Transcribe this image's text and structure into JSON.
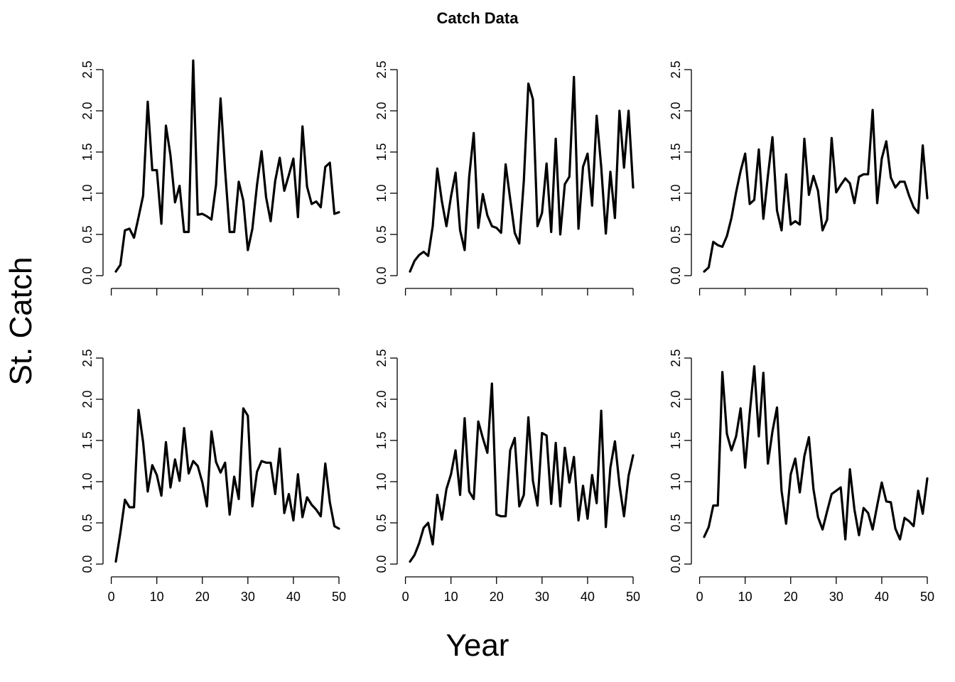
{
  "figure": {
    "title": "Catch Data",
    "xlabel": "Year",
    "ylabel": "St. Catch"
  },
  "chart_data": [
    {
      "type": "line",
      "panel": "row1-col1",
      "x_range": [
        1,
        50
      ],
      "ylim": [
        0,
        2.6
      ],
      "y_ticks": [
        "0.0",
        "0.5",
        "1.0",
        "1.5",
        "2.0",
        "2.5"
      ],
      "x_ticks": [
        "0",
        "10",
        "20",
        "30",
        "40",
        "50"
      ],
      "show_x_tick_labels": false,
      "grid": false,
      "values": [
        0.05,
        0.13,
        0.55,
        0.57,
        0.46,
        0.71,
        0.97,
        2.11,
        1.28,
        1.28,
        0.63,
        1.82,
        1.46,
        0.89,
        1.09,
        0.53,
        0.53,
        2.61,
        0.74,
        0.75,
        0.72,
        0.68,
        1.1,
        2.15,
        1.28,
        0.53,
        0.53,
        1.14,
        0.91,
        0.31,
        0.57,
        1.1,
        1.51,
        0.95,
        0.66,
        1.15,
        1.43,
        1.03,
        1.22,
        1.42,
        0.71,
        1.81,
        1.08,
        0.87,
        0.9,
        0.83,
        1.32,
        1.37,
        0.75,
        0.77
      ]
    },
    {
      "type": "line",
      "panel": "row1-col2",
      "x_range": [
        1,
        50
      ],
      "ylim": [
        0,
        2.6
      ],
      "y_ticks": [
        "0.0",
        "0.5",
        "1.0",
        "1.5",
        "2.0",
        "2.5"
      ],
      "x_ticks": [
        "0",
        "10",
        "20",
        "30",
        "40",
        "50"
      ],
      "show_x_tick_labels": false,
      "grid": false,
      "values": [
        0.05,
        0.18,
        0.25,
        0.29,
        0.24,
        0.6,
        1.3,
        0.9,
        0.6,
        0.96,
        1.25,
        0.55,
        0.31,
        1.2,
        1.73,
        0.58,
        0.99,
        0.73,
        0.6,
        0.58,
        0.52,
        1.35,
        0.93,
        0.52,
        0.39,
        1.15,
        2.33,
        2.14,
        0.6,
        0.76,
        1.36,
        0.53,
        1.66,
        0.5,
        1.11,
        1.2,
        2.41,
        0.57,
        1.32,
        1.48,
        0.85,
        1.94,
        1.32,
        0.51,
        1.26,
        0.7,
        2.0,
        1.31,
        2.0,
        1.07
      ]
    },
    {
      "type": "line",
      "panel": "row1-col3",
      "x_range": [
        1,
        50
      ],
      "ylim": [
        0,
        2.6
      ],
      "y_ticks": [
        "0.0",
        "0.5",
        "1.0",
        "1.5",
        "2.0",
        "2.5"
      ],
      "x_ticks": [
        "0",
        "10",
        "20",
        "30",
        "40",
        "50"
      ],
      "show_x_tick_labels": false,
      "grid": false,
      "values": [
        0.05,
        0.1,
        0.41,
        0.37,
        0.35,
        0.48,
        0.7,
        1.01,
        1.27,
        1.48,
        0.87,
        0.92,
        1.53,
        0.69,
        1.21,
        1.68,
        0.79,
        0.55,
        1.23,
        0.62,
        0.66,
        0.62,
        1.66,
        0.98,
        1.21,
        1.03,
        0.55,
        0.68,
        1.67,
        1.01,
        1.1,
        1.18,
        1.12,
        0.88,
        1.2,
        1.23,
        1.23,
        2.01,
        0.88,
        1.42,
        1.63,
        1.19,
        1.07,
        1.14,
        1.14,
        0.97,
        0.83,
        0.76,
        1.58,
        0.94
      ]
    },
    {
      "type": "line",
      "panel": "row2-col1",
      "x_range": [
        1,
        50
      ],
      "ylim": [
        0,
        2.6
      ],
      "y_ticks": [
        "0.0",
        "0.5",
        "1.0",
        "1.5",
        "2.0",
        "2.5"
      ],
      "x_ticks": [
        "0",
        "10",
        "20",
        "30",
        "40",
        "50"
      ],
      "show_x_tick_labels": true,
      "grid": false,
      "values": [
        0.03,
        0.38,
        0.78,
        0.69,
        0.69,
        1.87,
        1.48,
        0.88,
        1.2,
        1.08,
        0.83,
        1.48,
        0.93,
        1.27,
        1.01,
        1.65,
        1.1,
        1.25,
        1.19,
        0.99,
        0.7,
        1.61,
        1.24,
        1.11,
        1.23,
        0.6,
        1.06,
        0.79,
        1.89,
        1.8,
        0.7,
        1.12,
        1.25,
        1.23,
        1.23,
        0.85,
        1.4,
        0.62,
        0.85,
        0.53,
        1.09,
        0.57,
        0.81,
        0.72,
        0.66,
        0.58,
        1.22,
        0.75,
        0.46,
        0.43
      ]
    },
    {
      "type": "line",
      "panel": "row2-col2",
      "x_range": [
        1,
        50
      ],
      "ylim": [
        0,
        2.6
      ],
      "y_ticks": [
        "0.0",
        "0.5",
        "1.0",
        "1.5",
        "2.0",
        "2.5"
      ],
      "x_ticks": [
        "0",
        "10",
        "20",
        "30",
        "40",
        "50"
      ],
      "show_x_tick_labels": true,
      "grid": false,
      "values": [
        0.03,
        0.11,
        0.25,
        0.44,
        0.5,
        0.24,
        0.84,
        0.54,
        0.91,
        1.09,
        1.38,
        0.84,
        1.77,
        0.88,
        0.79,
        1.73,
        1.53,
        1.35,
        2.19,
        0.6,
        0.58,
        0.58,
        1.38,
        1.53,
        0.7,
        0.84,
        1.78,
        1.01,
        0.71,
        1.59,
        1.56,
        0.73,
        1.47,
        0.7,
        1.41,
        0.99,
        1.3,
        0.53,
        0.95,
        0.55,
        1.08,
        0.74,
        1.86,
        0.45,
        1.17,
        1.49,
        0.96,
        0.58,
        1.07,
        1.32
      ]
    },
    {
      "type": "line",
      "panel": "row2-col3",
      "x_range": [
        1,
        50
      ],
      "ylim": [
        0,
        2.6
      ],
      "y_ticks": [
        "0.0",
        "0.5",
        "1.0",
        "1.5",
        "2.0",
        "2.5"
      ],
      "x_ticks": [
        "0",
        "10",
        "20",
        "30",
        "40",
        "50"
      ],
      "show_x_tick_labels": true,
      "grid": false,
      "values": [
        0.33,
        0.45,
        0.71,
        0.71,
        2.33,
        1.58,
        1.38,
        1.55,
        1.89,
        1.17,
        1.83,
        2.4,
        1.55,
        2.32,
        1.22,
        1.61,
        1.9,
        0.89,
        0.49,
        1.09,
        1.28,
        0.87,
        1.31,
        1.54,
        0.91,
        0.57,
        0.42,
        0.64,
        0.85,
        0.89,
        0.93,
        0.3,
        1.15,
        0.66,
        0.35,
        0.68,
        0.62,
        0.42,
        0.71,
        0.99,
        0.76,
        0.75,
        0.43,
        0.3,
        0.56,
        0.52,
        0.46,
        0.89,
        0.61,
        1.04
      ]
    }
  ]
}
